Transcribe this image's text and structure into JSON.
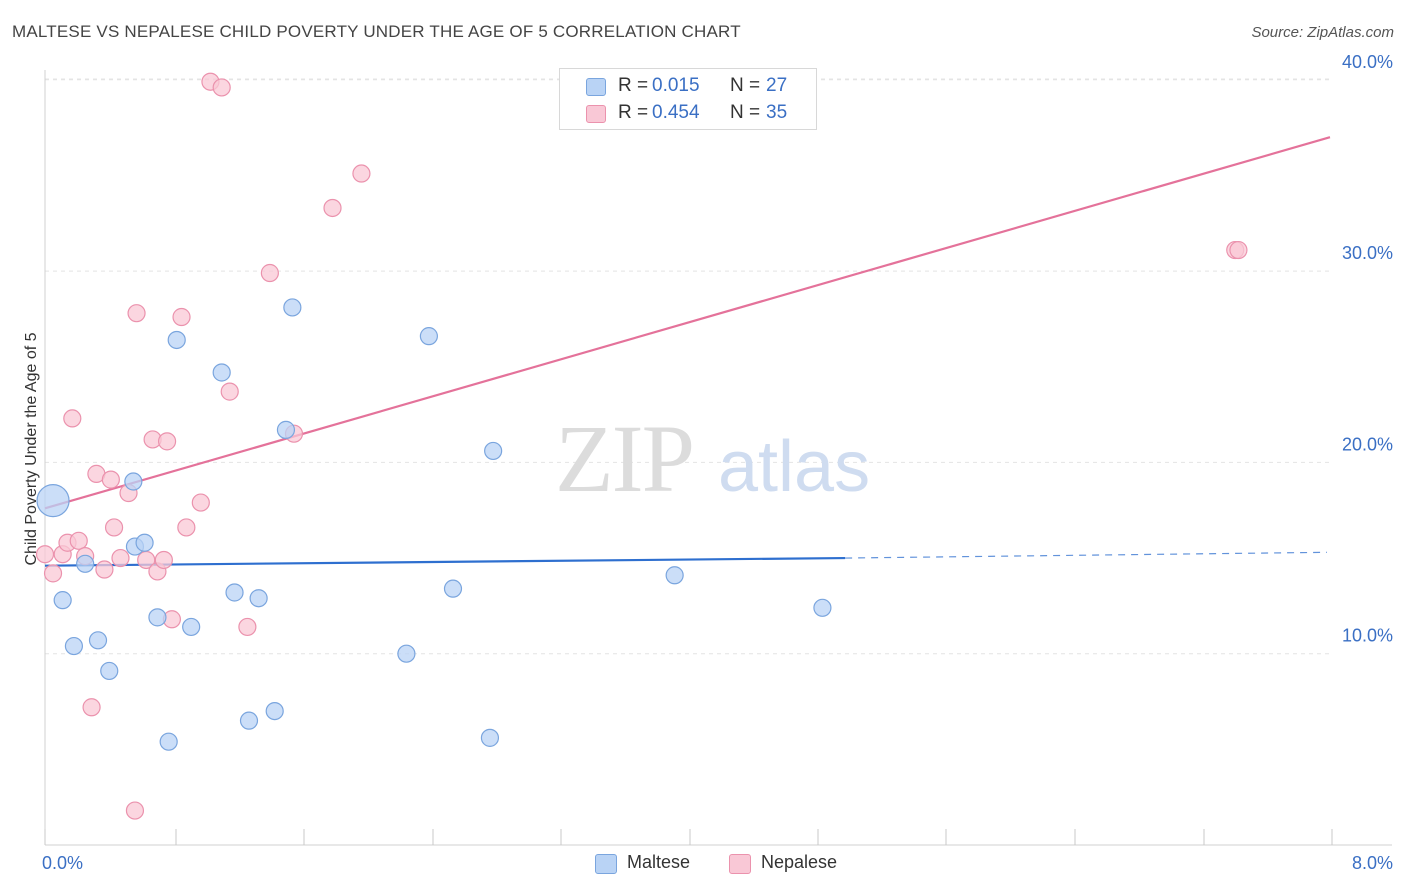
{
  "title": "MALTESE VS NEPALESE CHILD POVERTY UNDER THE AGE OF 5 CORRELATION CHART",
  "source": "Source: ZipAtlas.com",
  "watermark": {
    "zip": "ZIP",
    "atlas": "atlas"
  },
  "colors": {
    "maltese_fill": "#b9d3f5",
    "maltese_stroke": "#7aa5de",
    "maltese_line": "#2e6fcf",
    "nepalese_fill": "#f9c8d6",
    "nepalese_stroke": "#eb92ad",
    "nepalese_line": "#e4729a",
    "tick_label": "#3a6fc4",
    "grid": "#e4e4e4"
  },
  "legend": {
    "rows": [
      {
        "r_label": "R =",
        "r_value": "0.015",
        "n_label": "N =",
        "n_value": "27"
      },
      {
        "r_label": "R =",
        "r_value": "0.454",
        "n_label": "N =",
        "n_value": "35"
      }
    ]
  },
  "bottom_legend": {
    "maltese": "Maltese",
    "nepalese": "Nepalese"
  },
  "chart_data": {
    "type": "scatter",
    "title": "MALTESE VS NEPALESE CHILD POVERTY UNDER THE AGE OF 5 CORRELATION CHART",
    "xlabel": "",
    "ylabel": "Child Poverty Under the Age of 5",
    "xlim": [
      0,
      8
    ],
    "ylim": [
      0,
      42
    ],
    "x_tick_labels": [
      {
        "value": 0,
        "label": "0.0%"
      },
      {
        "value": 8,
        "label": "8.0%"
      }
    ],
    "x_minor_ticks": [
      0,
      0.8,
      1.6,
      2.4,
      3.2,
      4.0,
      4.8,
      5.6,
      6.4,
      7.2,
      8.0
    ],
    "y_ticks": [
      {
        "value": 10,
        "label": "10.0%"
      },
      {
        "value": 20,
        "label": "20.0%"
      },
      {
        "value": 30,
        "label": "30.0%"
      },
      {
        "value": 40,
        "label": "40.0%"
      }
    ],
    "grid": true,
    "legend_position": "top-center",
    "series": [
      {
        "name": "Maltese",
        "r": 0.015,
        "n": 27,
        "trend": {
          "x0": 0,
          "y0": 14.6,
          "x1": 5.0,
          "y1": 15.0,
          "dash_x1": 8.0,
          "dash_y1": 15.3
        },
        "points": [
          {
            "x": 0.05,
            "y": 18.0,
            "big": true
          },
          {
            "x": 0.11,
            "y": 12.8
          },
          {
            "x": 0.18,
            "y": 10.4
          },
          {
            "x": 0.25,
            "y": 14.7
          },
          {
            "x": 0.33,
            "y": 10.7
          },
          {
            "x": 0.4,
            "y": 9.1
          },
          {
            "x": 0.56,
            "y": 15.6
          },
          {
            "x": 0.55,
            "y": 19.0
          },
          {
            "x": 0.62,
            "y": 15.8
          },
          {
            "x": 0.7,
            "y": 11.9
          },
          {
            "x": 0.77,
            "y": 5.4
          },
          {
            "x": 0.82,
            "y": 26.4
          },
          {
            "x": 0.91,
            "y": 11.4
          },
          {
            "x": 1.1,
            "y": 24.7
          },
          {
            "x": 1.18,
            "y": 13.2
          },
          {
            "x": 1.27,
            "y": 6.5
          },
          {
            "x": 1.33,
            "y": 12.9
          },
          {
            "x": 1.43,
            "y": 7.0
          },
          {
            "x": 1.5,
            "y": 21.7
          },
          {
            "x": 1.54,
            "y": 28.1
          },
          {
            "x": 2.25,
            "y": 10.0
          },
          {
            "x": 2.39,
            "y": 26.6
          },
          {
            "x": 2.54,
            "y": 13.4
          },
          {
            "x": 2.77,
            "y": 5.6
          },
          {
            "x": 2.79,
            "y": 20.6
          },
          {
            "x": 3.92,
            "y": 14.1
          },
          {
            "x": 4.84,
            "y": 12.4
          }
        ]
      },
      {
        "name": "Nepalese",
        "r": 0.454,
        "n": 35,
        "trend": {
          "x0": 0,
          "y0": 17.6,
          "x1": 8.0,
          "y1": 37.0
        },
        "points": [
          {
            "x": 0.0,
            "y": 15.2
          },
          {
            "x": 0.05,
            "y": 14.2
          },
          {
            "x": 0.11,
            "y": 15.2
          },
          {
            "x": 0.14,
            "y": 15.8
          },
          {
            "x": 0.17,
            "y": 22.3
          },
          {
            "x": 0.21,
            "y": 15.9
          },
          {
            "x": 0.25,
            "y": 15.1
          },
          {
            "x": 0.29,
            "y": 7.2
          },
          {
            "x": 0.32,
            "y": 19.4
          },
          {
            "x": 0.37,
            "y": 14.4
          },
          {
            "x": 0.41,
            "y": 19.1
          },
          {
            "x": 0.43,
            "y": 16.6
          },
          {
            "x": 0.47,
            "y": 15.0
          },
          {
            "x": 0.52,
            "y": 18.4
          },
          {
            "x": 0.56,
            "y": 1.8
          },
          {
            "x": 0.57,
            "y": 27.8
          },
          {
            "x": 0.63,
            "y": 14.9
          },
          {
            "x": 0.67,
            "y": 21.2
          },
          {
            "x": 0.7,
            "y": 14.3
          },
          {
            "x": 0.74,
            "y": 14.9
          },
          {
            "x": 0.76,
            "y": 21.1
          },
          {
            "x": 0.79,
            "y": 11.8
          },
          {
            "x": 0.85,
            "y": 27.6
          },
          {
            "x": 0.88,
            "y": 16.6
          },
          {
            "x": 0.97,
            "y": 17.9
          },
          {
            "x": 1.03,
            "y": 39.9
          },
          {
            "x": 1.1,
            "y": 39.6
          },
          {
            "x": 1.15,
            "y": 23.7
          },
          {
            "x": 1.26,
            "y": 11.4
          },
          {
            "x": 1.4,
            "y": 29.9
          },
          {
            "x": 1.55,
            "y": 21.5
          },
          {
            "x": 1.79,
            "y": 33.3
          },
          {
            "x": 1.97,
            "y": 35.1
          },
          {
            "x": 7.41,
            "y": 31.1
          },
          {
            "x": 7.43,
            "y": 31.1
          }
        ]
      }
    ]
  }
}
